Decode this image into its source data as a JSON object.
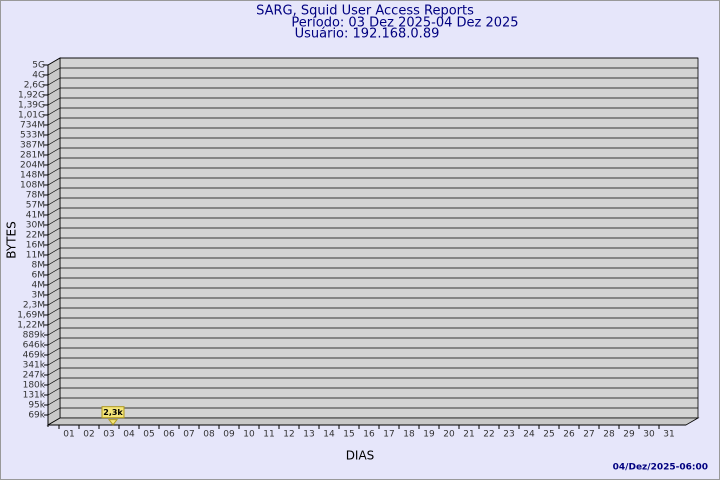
{
  "chart_data": {
    "type": "scatter",
    "title": "SARG, Squid User Access Reports",
    "subtitle": "Período: 03 Dez 2025-04 Dez 2025",
    "user": "Usuário: 192.168.0.89",
    "x_label": "DIAS",
    "y_label": "BYTES",
    "footer": "04/Dez/2025-06:00",
    "categories": [
      "01",
      "02",
      "03",
      "04",
      "05",
      "06",
      "07",
      "08",
      "09",
      "10",
      "11",
      "12",
      "13",
      "14",
      "15",
      "16",
      "17",
      "18",
      "19",
      "20",
      "21",
      "22",
      "23",
      "24",
      "25",
      "26",
      "27",
      "28",
      "29",
      "30",
      "31"
    ],
    "values": [
      null,
      null,
      2300,
      null,
      null,
      null,
      null,
      null,
      null,
      null,
      null,
      null,
      null,
      null,
      null,
      null,
      null,
      null,
      null,
      null,
      null,
      null,
      null,
      null,
      null,
      null,
      null,
      null,
      null,
      null,
      null
    ],
    "value_labels": [
      null,
      null,
      "2,3k",
      null,
      null,
      null,
      null,
      null,
      null,
      null,
      null,
      null,
      null,
      null,
      null,
      null,
      null,
      null,
      null,
      null,
      null,
      null,
      null,
      null,
      null,
      null,
      null,
      null,
      null,
      null,
      null
    ],
    "color": "#f5e67a",
    "ylim": [
      0,
      5000000000
    ],
    "yticks": [
      {
        "value": 69000,
        "label": "69k"
      },
      {
        "value": 95000,
        "label": "95k"
      },
      {
        "value": 131000,
        "label": "131k"
      },
      {
        "value": 180000,
        "label": "180k"
      },
      {
        "value": 247000,
        "label": "247k"
      },
      {
        "value": 341000,
        "label": "341k"
      },
      {
        "value": 469000,
        "label": "469k"
      },
      {
        "value": 646000,
        "label": "646k"
      },
      {
        "value": 889000,
        "label": "889k"
      },
      {
        "value": 1220000,
        "label": "1,22M"
      },
      {
        "value": 1690000,
        "label": "1,69M"
      },
      {
        "value": 2300000,
        "label": "2,3M"
      },
      {
        "value": 3000000,
        "label": "3M"
      },
      {
        "value": 4000000,
        "label": "4M"
      },
      {
        "value": 6000000,
        "label": "6M"
      },
      {
        "value": 8000000,
        "label": "8M"
      },
      {
        "value": 11000000,
        "label": "11M"
      },
      {
        "value": 16000000,
        "label": "16M"
      },
      {
        "value": 22000000,
        "label": "22M"
      },
      {
        "value": 30000000,
        "label": "30M"
      },
      {
        "value": 41000000,
        "label": "41M"
      },
      {
        "value": 57000000,
        "label": "57M"
      },
      {
        "value": 78000000,
        "label": "78M"
      },
      {
        "value": 108000000,
        "label": "108M"
      },
      {
        "value": 148000000,
        "label": "148M"
      },
      {
        "value": 204000000,
        "label": "204M"
      },
      {
        "value": 281000000,
        "label": "281M"
      },
      {
        "value": 387000000,
        "label": "387M"
      },
      {
        "value": 533000000,
        "label": "533M"
      },
      {
        "value": 734000000,
        "label": "734M"
      },
      {
        "value": 1010000000,
        "label": "1,01G"
      },
      {
        "value": 1390000000,
        "label": "1,39G"
      },
      {
        "value": 1920000000,
        "label": "1,92G"
      },
      {
        "value": 2600000000,
        "label": "2,6G"
      },
      {
        "value": 4000000000,
        "label": "4G"
      },
      {
        "value": 5000000000,
        "label": "5G"
      }
    ],
    "grid": true
  }
}
